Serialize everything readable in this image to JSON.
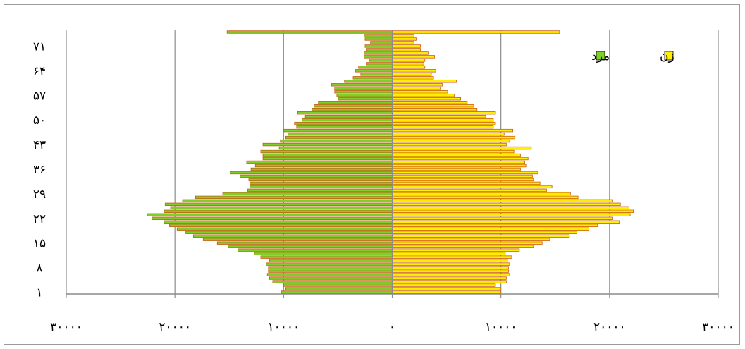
{
  "chart_data": {
    "type": "bar",
    "orientation": "horizontal-population-pyramid",
    "title": "",
    "xlabel": "",
    "ylabel": "",
    "xlim": [
      -30000,
      30000
    ],
    "grid": true,
    "legend_placement": "top-right",
    "x_ticks": [
      {
        "value": -30000,
        "label": "۳۰۰۰۰"
      },
      {
        "value": -20000,
        "label": "۲۰۰۰۰"
      },
      {
        "value": -10000,
        "label": "۱۰۰۰۰"
      },
      {
        "value": 0,
        "label": "۰"
      },
      {
        "value": 10000,
        "label": "۱۰۰۰۰"
      },
      {
        "value": 20000,
        "label": "۲۰۰۰۰"
      },
      {
        "value": 30000,
        "label": "۳۰۰۰۰"
      }
    ],
    "y_ticks": [
      {
        "value": 1,
        "label": "۱"
      },
      {
        "value": 8,
        "label": "۸"
      },
      {
        "value": 15,
        "label": "۱۵"
      },
      {
        "value": 22,
        "label": "۲۲"
      },
      {
        "value": 29,
        "label": "۲۹"
      },
      {
        "value": 36,
        "label": "۳۶"
      },
      {
        "value": 43,
        "label": "۴۳"
      },
      {
        "value": 50,
        "label": "۵۰"
      },
      {
        "value": 57,
        "label": "۵۷"
      },
      {
        "value": 64,
        "label": "۶۴"
      },
      {
        "value": 71,
        "label": "۷۱"
      }
    ],
    "categories": [
      1,
      2,
      3,
      4,
      5,
      6,
      7,
      8,
      9,
      10,
      11,
      12,
      13,
      14,
      15,
      16,
      17,
      18,
      19,
      20,
      21,
      22,
      23,
      24,
      25,
      26,
      27,
      28,
      29,
      30,
      31,
      32,
      33,
      34,
      35,
      36,
      37,
      38,
      39,
      40,
      41,
      42,
      43,
      44,
      45,
      46,
      47,
      48,
      49,
      50,
      51,
      52,
      53,
      54,
      55,
      56,
      57,
      58,
      59,
      60,
      61,
      62,
      63,
      64,
      65,
      66,
      67,
      68,
      69,
      70,
      71,
      72,
      73,
      74,
      75
    ],
    "series": [
      {
        "name": "مرد",
        "color": "#7fce2a",
        "values": [
          10200,
          9800,
          10000,
          11000,
          11300,
          11500,
          11400,
          11400,
          11600,
          11300,
          12100,
          12700,
          14200,
          15100,
          16100,
          17400,
          18300,
          19000,
          19800,
          20500,
          21000,
          22100,
          22500,
          21000,
          20400,
          20900,
          19300,
          18100,
          15600,
          13300,
          13100,
          13100,
          13200,
          14000,
          14900,
          13000,
          12600,
          13400,
          11900,
          11900,
          12100,
          10400,
          11900,
          10300,
          9800,
          9600,
          10000,
          8800,
          9000,
          8300,
          8000,
          8700,
          7400,
          7200,
          6800,
          5000,
          5100,
          5300,
          5300,
          5600,
          4400,
          3600,
          2900,
          3400,
          3100,
          2400,
          2100,
          2600,
          2600,
          2400,
          2500,
          2000,
          2500,
          2600,
          15200
        ]
      },
      {
        "name": "زن",
        "color": "#ffee00",
        "values": [
          10000,
          10000,
          9500,
          10500,
          10500,
          10800,
          10700,
          10700,
          10800,
          10600,
          11000,
          10400,
          11700,
          13000,
          13800,
          14500,
          16300,
          17000,
          18100,
          18900,
          20900,
          20300,
          21900,
          22200,
          21800,
          21000,
          20300,
          17100,
          16400,
          14200,
          14700,
          13600,
          13000,
          12900,
          13400,
          11800,
          12300,
          12200,
          12500,
          11800,
          11200,
          12800,
          10500,
          10800,
          11300,
          10300,
          11100,
          9300,
          9500,
          9300,
          8600,
          9500,
          7800,
          7500,
          6900,
          6300,
          5700,
          5100,
          4400,
          4600,
          5900,
          3800,
          3600,
          4000,
          3000,
          2900,
          3000,
          3900,
          3300,
          2600,
          2600,
          2000,
          2200,
          2000,
          15400
        ]
      }
    ]
  },
  "legend": [
    {
      "label": "زن",
      "color": "#ffee00"
    },
    {
      "label": "مرد",
      "color": "#7fce2a"
    }
  ],
  "colors": {
    "bar_stroke": "#cc5a14",
    "gridline": "#8c8c8c",
    "axis": "#8c8c8c",
    "frame": "#9a9a9a"
  }
}
